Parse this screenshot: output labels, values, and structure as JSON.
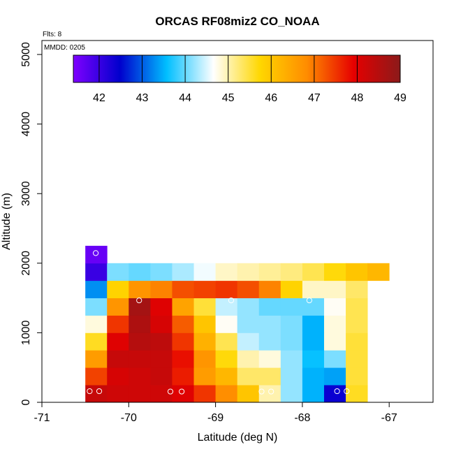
{
  "chart_data": {
    "type": "heatmap",
    "title": "ORCAS RF08miz2 CO_NOAA",
    "xlabel": "Latitude (deg N)",
    "ylabel": "Altitude (m)",
    "xlim": [
      -71,
      -66.5
    ],
    "ylim": [
      0,
      5200
    ],
    "x_ticks": [
      "-71",
      "-70",
      "-69",
      "-68",
      "-67"
    ],
    "y_ticks": [
      "0",
      "1000",
      "2000",
      "3000",
      "4000",
      "5000"
    ],
    "flights_label": "Flts: 8",
    "date_label": "MMDD: 0205",
    "colorbar": {
      "min": 41.4,
      "max": 49,
      "ticks": [
        "42",
        "43",
        "44",
        "45",
        "46",
        "47",
        "48",
        "49"
      ],
      "stops": [
        "#7f00ff",
        "#0000cd",
        "#00bfff",
        "#ffffff",
        "#ffd700",
        "#ff8c00",
        "#e60000",
        "#8b1a1a"
      ]
    },
    "bins": {
      "lat_start": -70.5,
      "lat_step": 0.25,
      "alt_start": 0,
      "alt_step": 250
    },
    "cells": [
      [
        48.3,
        48.2,
        48.2,
        48.2,
        48.0,
        47.5,
        46.8,
        46.0,
        45.0,
        44.2,
        43.5,
        42.4,
        45.6
      ],
      [
        47.4,
        48.1,
        48.2,
        48.3,
        47.7,
        46.6,
        46.2,
        45.3,
        45.3,
        44.2,
        43.5,
        43.4,
        45.5
      ],
      [
        46.6,
        48.3,
        48.3,
        48.3,
        47.8,
        46.7,
        45.7,
        45.0,
        44.8,
        44.2,
        43.6,
        44.1,
        45.5
      ],
      [
        45.6,
        48.0,
        48.5,
        48.4,
        47.5,
        46.3,
        45.4,
        44.4,
        44.2,
        44.1,
        43.5,
        44.8,
        45.5
      ],
      [
        44.8,
        47.5,
        48.6,
        48.1,
        47.2,
        46.0,
        44.7,
        44.2,
        44.2,
        44.1,
        43.5,
        44.8,
        45.4
      ],
      [
        44.1,
        46.7,
        48.7,
        48.0,
        46.5,
        45.5,
        44.4,
        44.2,
        44.0,
        44.0,
        44.0,
        44.7,
        45.4
      ],
      [
        43.3,
        45.8,
        46.7,
        46.9,
        47.3,
        47.4,
        47.5,
        47.3,
        46.9,
        45.8,
        44.9,
        44.9,
        45.3
      ],
      [
        42.0,
        44.1,
        44.0,
        44.1,
        44.3,
        44.6,
        44.9,
        45.0,
        45.1,
        45.2,
        45.4,
        45.7,
        46.0,
        46.2
      ],
      [
        41.6
      ]
    ],
    "observation_markers": [
      {
        "lat": -70.45,
        "alt": 160
      },
      {
        "lat": -70.34,
        "alt": 160
      },
      {
        "lat": -69.52,
        "alt": 155
      },
      {
        "lat": -69.39,
        "alt": 155
      },
      {
        "lat": -68.47,
        "alt": 155
      },
      {
        "lat": -68.36,
        "alt": 155
      },
      {
        "lat": -67.6,
        "alt": 160
      },
      {
        "lat": -67.49,
        "alt": 160
      },
      {
        "lat": -69.88,
        "alt": 1465
      },
      {
        "lat": -68.82,
        "alt": 1465
      },
      {
        "lat": -67.92,
        "alt": 1465
      },
      {
        "lat": -70.38,
        "alt": 2145
      }
    ]
  }
}
